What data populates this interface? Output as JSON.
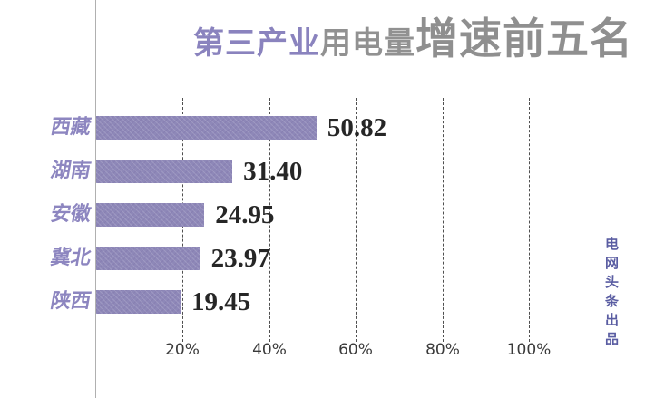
{
  "title": {
    "segment_highlight": "第三产业",
    "segment_mid": "用电量",
    "segment_large": "增速前五名"
  },
  "watermark": {
    "text": "电网头条出品"
  },
  "chart_data": {
    "type": "bar",
    "orientation": "horizontal",
    "title": "第三产业用电量增速前五名",
    "categories": [
      "西藏",
      "湖南",
      "安徽",
      "冀北",
      "陕西"
    ],
    "values": [
      50.82,
      31.4,
      24.95,
      23.97,
      19.45
    ],
    "value_labels": [
      "50.82",
      "31.40",
      "24.95",
      "23.97",
      "19.45"
    ],
    "unit": "%",
    "x_ticks": [
      "20%",
      "40%",
      "60%",
      "80%",
      "100%"
    ],
    "x_tick_values": [
      20,
      40,
      60,
      80,
      100
    ],
    "xlim": [
      0,
      100
    ],
    "grid": "vertical-dashed",
    "legend": "none",
    "colors": {
      "bar": "#8e88b8",
      "category_label": "#8d86c0",
      "value_label": "#262626",
      "title_highlight": "#8a83be",
      "title_gray": "#8f8f8f",
      "watermark": "#5a5da2",
      "axis_line": "#b0b0b0",
      "gridline": "#4f4f4f"
    }
  }
}
